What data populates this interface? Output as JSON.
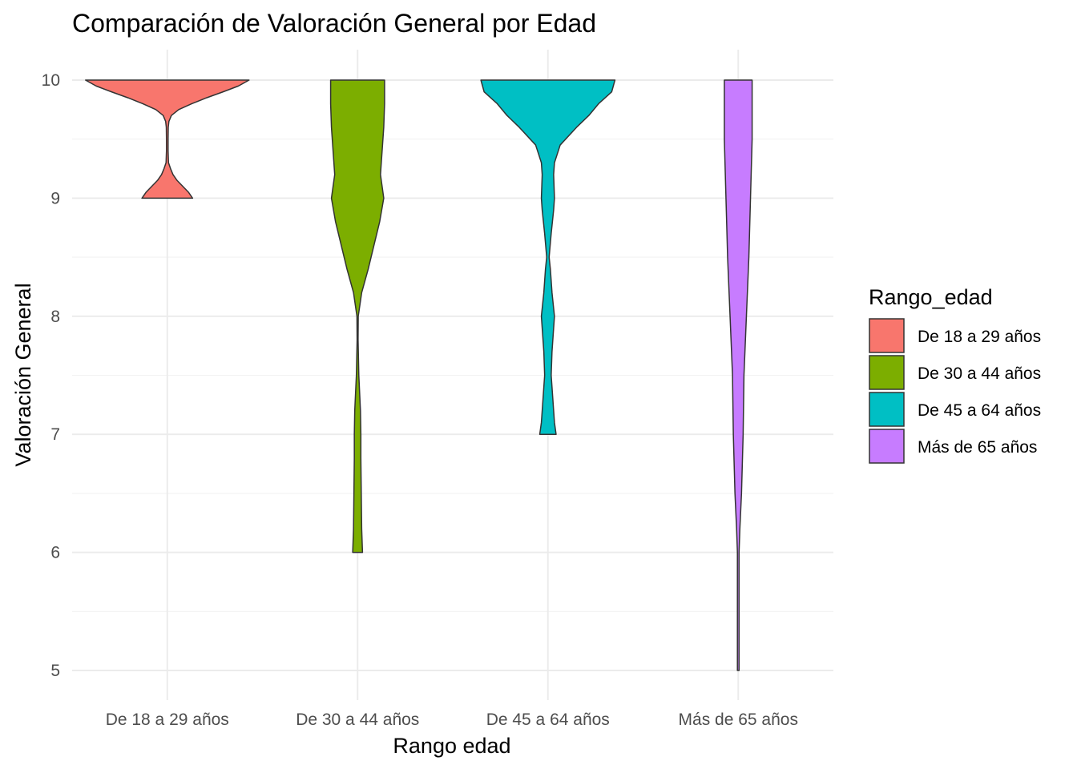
{
  "chart_data": {
    "type": "violin",
    "title": "Comparación de Valoración General por Edad",
    "xlabel": "Rango edad",
    "ylabel": "Valoración General",
    "categories": [
      "De 18 a 29 años",
      "De 30 a 44 años",
      "De 45 a 64 años",
      "Más de 65 años"
    ],
    "yticks": [
      "5",
      "6",
      "7",
      "8",
      "9",
      "10"
    ],
    "ylim": [
      4.8,
      10.25
    ],
    "grid": true,
    "legend": {
      "title": "Rango_edad",
      "position": "right",
      "entries": [
        "De 18 a 29 años",
        "De 30 a 44 años",
        "De 45 a 64 años",
        "Más de 65 años"
      ]
    },
    "colors": [
      "#F8766D",
      "#7CAE00",
      "#00BFC4",
      "#C77CFF"
    ],
    "series": [
      {
        "range": [
          9,
          10
        ],
        "density_profile": [
          [
            9.0,
            0.31
          ],
          [
            9.05,
            0.26
          ],
          [
            9.1,
            0.19
          ],
          [
            9.15,
            0.12
          ],
          [
            9.2,
            0.07
          ],
          [
            9.25,
            0.04
          ],
          [
            9.3,
            0.015
          ],
          [
            9.4,
            0.01
          ],
          [
            9.5,
            0.01
          ],
          [
            9.6,
            0.012
          ],
          [
            9.65,
            0.02
          ],
          [
            9.7,
            0.05
          ],
          [
            9.75,
            0.14
          ],
          [
            9.8,
            0.3
          ],
          [
            9.85,
            0.48
          ],
          [
            9.9,
            0.68
          ],
          [
            9.95,
            0.87
          ],
          [
            10.0,
            1.0
          ]
        ]
      },
      {
        "range": [
          6,
          10
        ],
        "density_profile": [
          [
            6.0,
            0.06
          ],
          [
            6.2,
            0.05
          ],
          [
            6.5,
            0.045
          ],
          [
            6.8,
            0.04
          ],
          [
            7.0,
            0.04
          ],
          [
            7.2,
            0.035
          ],
          [
            7.5,
            0.015
          ],
          [
            7.8,
            0.006
          ],
          [
            8.0,
            0.008
          ],
          [
            8.2,
            0.05
          ],
          [
            8.4,
            0.13
          ],
          [
            8.6,
            0.2
          ],
          [
            8.8,
            0.27
          ],
          [
            9.0,
            0.32
          ],
          [
            9.2,
            0.28
          ],
          [
            9.4,
            0.3
          ],
          [
            9.6,
            0.32
          ],
          [
            9.8,
            0.33
          ],
          [
            10.0,
            0.33
          ]
        ]
      },
      {
        "range": [
          7,
          10
        ],
        "density_profile": [
          [
            7.0,
            0.1
          ],
          [
            7.1,
            0.08
          ],
          [
            7.3,
            0.06
          ],
          [
            7.5,
            0.04
          ],
          [
            7.7,
            0.05
          ],
          [
            7.9,
            0.07
          ],
          [
            8.0,
            0.08
          ],
          [
            8.2,
            0.05
          ],
          [
            8.4,
            0.03
          ],
          [
            8.5,
            0.015
          ],
          [
            8.7,
            0.04
          ],
          [
            8.9,
            0.07
          ],
          [
            9.0,
            0.08
          ],
          [
            9.2,
            0.07
          ],
          [
            9.3,
            0.08
          ],
          [
            9.45,
            0.15
          ],
          [
            9.6,
            0.35
          ],
          [
            9.7,
            0.5
          ],
          [
            9.8,
            0.62
          ],
          [
            9.9,
            0.78
          ],
          [
            10.0,
            0.82
          ]
        ]
      },
      {
        "range": [
          5,
          10
        ],
        "density_profile": [
          [
            5.0,
            0.01
          ],
          [
            5.5,
            0.01
          ],
          [
            6.0,
            0.01
          ],
          [
            6.2,
            0.02
          ],
          [
            6.5,
            0.04
          ],
          [
            7.0,
            0.06
          ],
          [
            7.5,
            0.07
          ],
          [
            8.0,
            0.1
          ],
          [
            8.5,
            0.13
          ],
          [
            9.0,
            0.15
          ],
          [
            9.5,
            0.17
          ],
          [
            10.0,
            0.17
          ]
        ]
      }
    ]
  }
}
